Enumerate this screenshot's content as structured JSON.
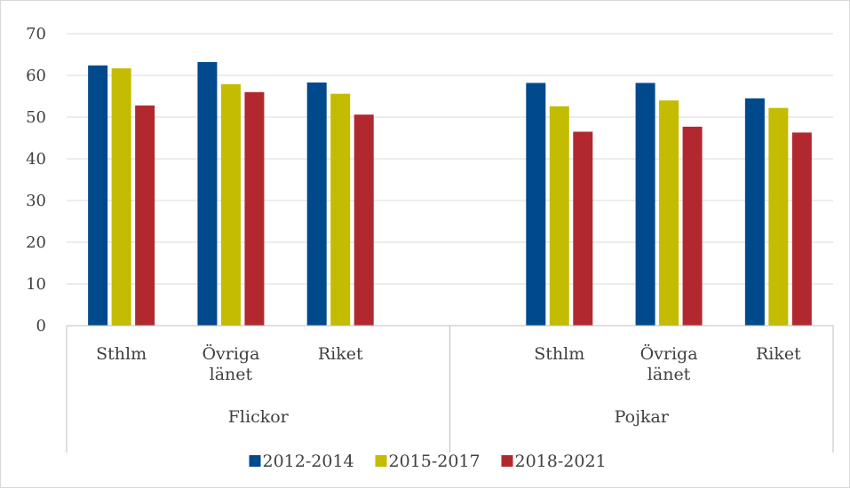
{
  "chart_data": {
    "type": "bar",
    "groups": [
      {
        "name": "Flickor",
        "categories": [
          "Sthlm",
          "Övriga länet",
          "Riket"
        ]
      },
      {
        "name": "Pojkar",
        "categories": [
          "Sthlm",
          "Övriga länet",
          "Riket"
        ]
      }
    ],
    "series": [
      {
        "name": "2012-2014",
        "color": "#00498C",
        "values": [
          62.4,
          63.2,
          58.3,
          58.2,
          58.2,
          54.5
        ]
      },
      {
        "name": "2015-2017",
        "color": "#C3BC00",
        "values": [
          61.7,
          57.9,
          55.6,
          52.6,
          54.0,
          52.2
        ]
      },
      {
        "name": "2018-2021",
        "color": "#B1292F",
        "values": [
          52.8,
          56.0,
          50.6,
          46.5,
          47.7,
          46.3
        ]
      }
    ],
    "yticks": [
      0,
      10,
      20,
      30,
      40,
      50,
      60,
      70
    ],
    "ylim": [
      0,
      70
    ],
    "grid": true,
    "legend_position": "bottom"
  }
}
